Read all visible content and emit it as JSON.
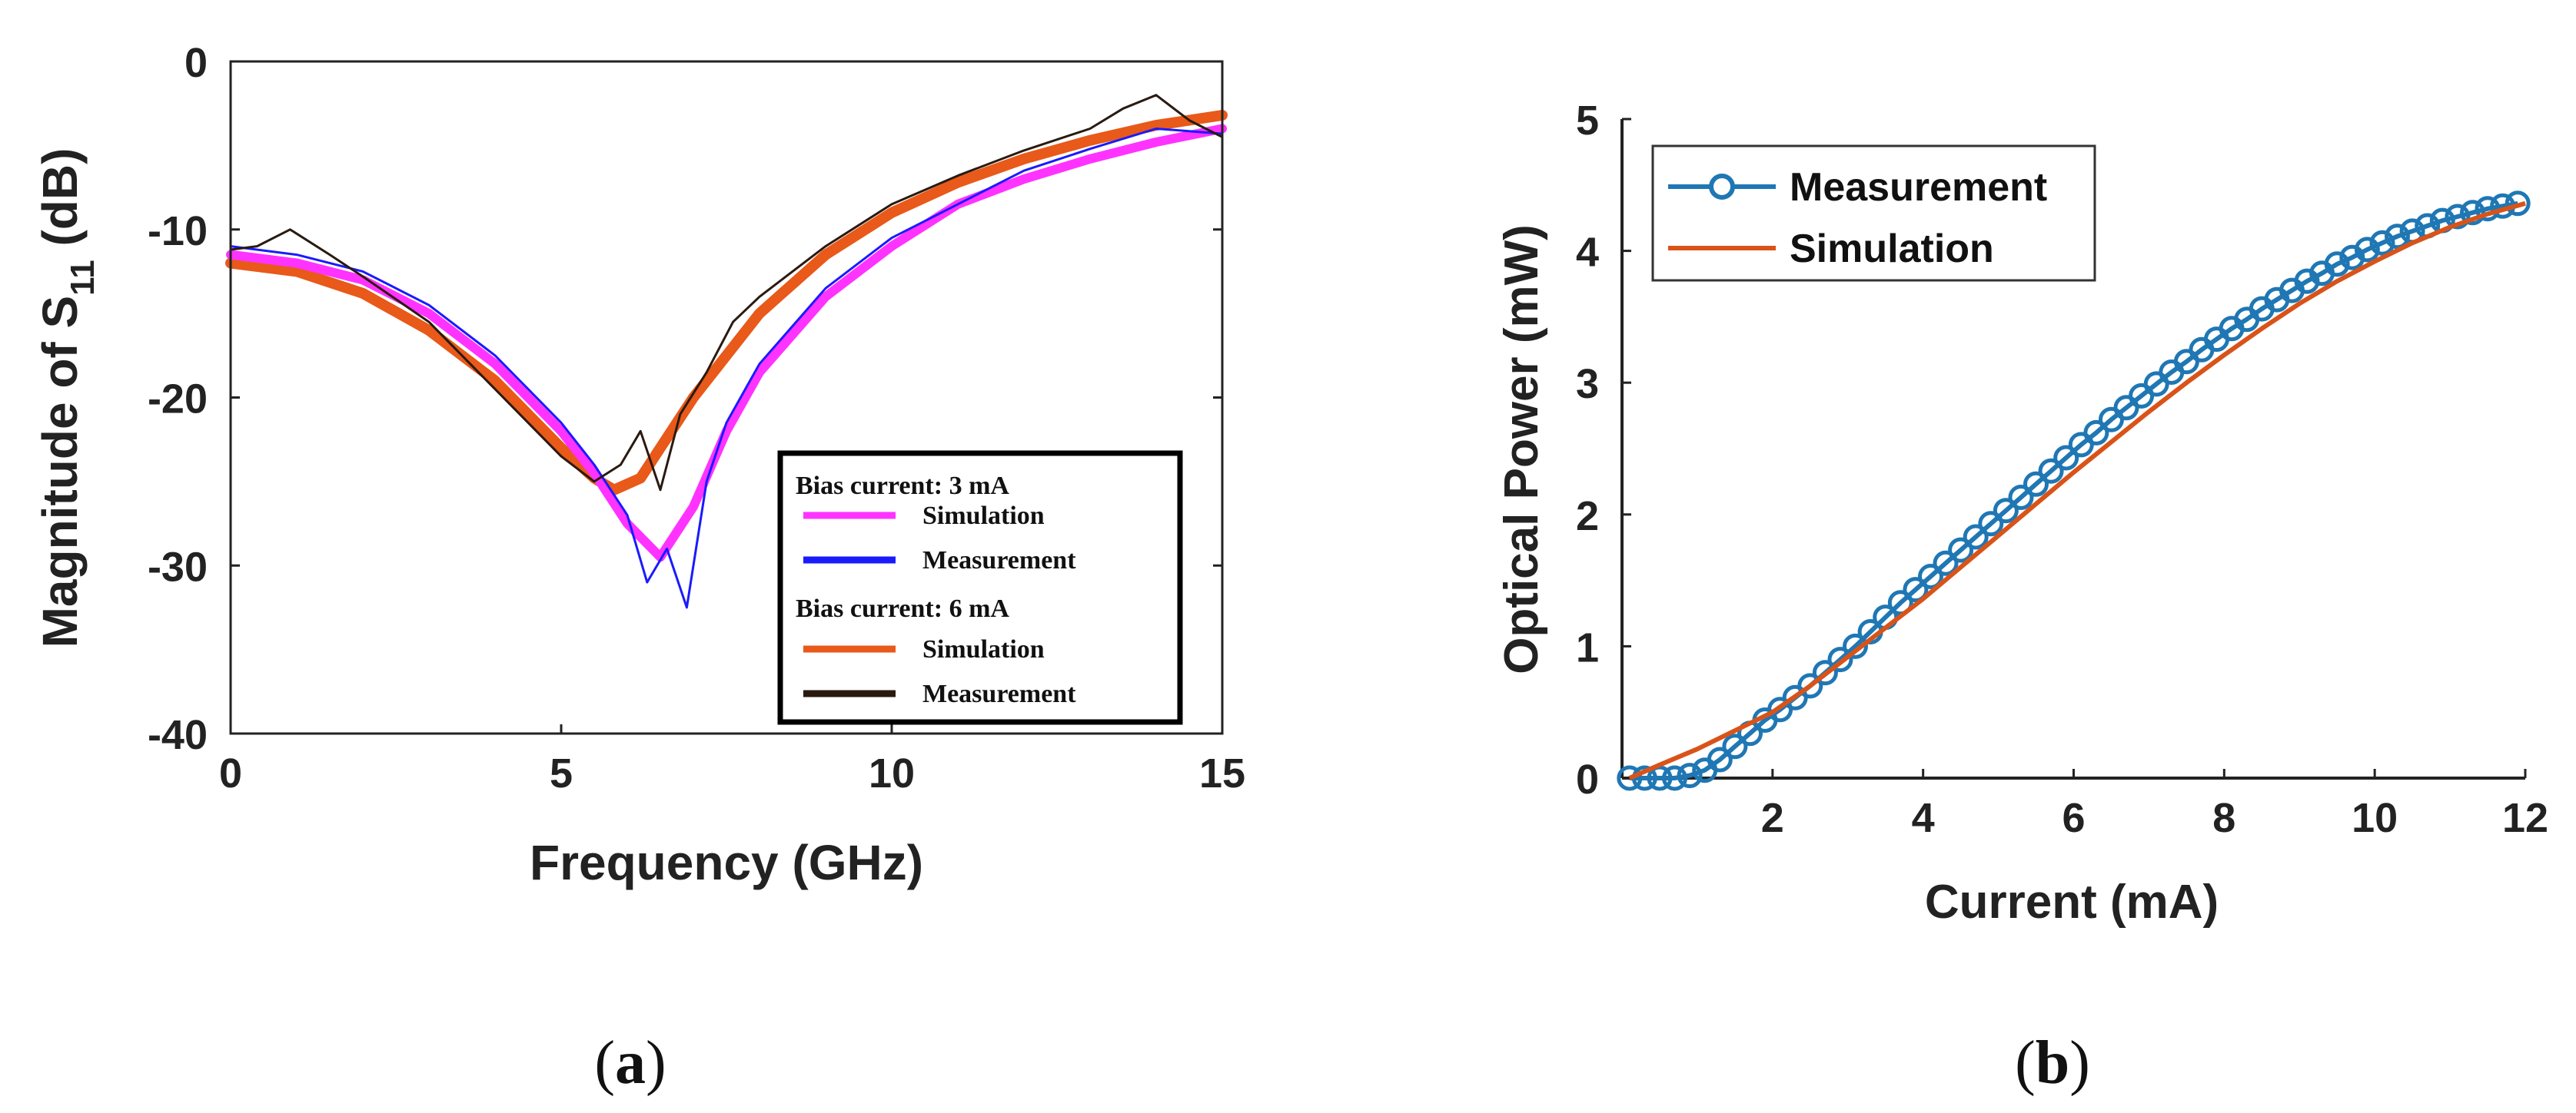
{
  "chart_data": [
    {
      "type": "line",
      "panel_label": "a",
      "xlabel": "Frequency (GHz)",
      "ylabel": "Magnitude of S",
      "ylabel_subscript": "11",
      "ylabel_suffix": " (dB)",
      "xlim": [
        0,
        15
      ],
      "ylim": [
        -40,
        0
      ],
      "xticks": [
        0,
        5,
        10,
        15
      ],
      "yticks": [
        0,
        -10,
        -20,
        -30,
        -40
      ],
      "xtick_labels": [
        "0",
        "5",
        "10",
        "15"
      ],
      "ytick_labels": [
        "0",
        "-10",
        "-20",
        "-30",
        "-40"
      ],
      "legend": {
        "group1_title": "Bias current: 3 mA",
        "group2_title": "Bias current: 6 mA",
        "placement": "bottom-right"
      },
      "series": [
        {
          "name": "Simulation",
          "group": "Bias current: 3 mA",
          "color": "#ff33ff",
          "x": [
            0,
            1,
            2,
            3,
            4,
            5,
            5.5,
            6,
            6.5,
            7,
            7.5,
            8,
            9,
            10,
            11,
            12,
            13,
            14,
            15
          ],
          "y": [
            -11.5,
            -12,
            -13,
            -15,
            -18,
            -22,
            -24.5,
            -27.5,
            -29.5,
            -26.5,
            -22,
            -18.5,
            -14,
            -11,
            -8.5,
            -7,
            -5.8,
            -4.8,
            -4
          ]
        },
        {
          "name": "Measurement",
          "group": "Bias current: 3 mA",
          "color": "#1a1aff",
          "x": [
            0,
            1,
            2,
            3,
            4,
            5,
            5.5,
            6,
            6.3,
            6.6,
            6.9,
            7.2,
            7.5,
            8,
            9,
            10,
            11,
            12,
            13,
            14,
            15
          ],
          "y": [
            -11,
            -11.5,
            -12.5,
            -14.5,
            -17.5,
            -21.5,
            -24,
            -27,
            -31,
            -29,
            -32.5,
            -25,
            -21.5,
            -18,
            -13.5,
            -10.5,
            -8.5,
            -6.5,
            -5.2,
            -4,
            -4.3
          ]
        },
        {
          "name": "Simulation",
          "group": "Bias current: 6 mA",
          "color": "#e8591a",
          "x": [
            0,
            1,
            2,
            3,
            4,
            5,
            5.5,
            5.8,
            6.2,
            6.5,
            7,
            7.5,
            8,
            9,
            10,
            11,
            12,
            13,
            14,
            15
          ],
          "y": [
            -12,
            -12.5,
            -13.8,
            -16,
            -19,
            -23,
            -24.8,
            -25.5,
            -24.8,
            -23,
            -20,
            -17.5,
            -15,
            -11.5,
            -9,
            -7.2,
            -5.8,
            -4.7,
            -3.8,
            -3.2
          ]
        },
        {
          "name": "Measurement",
          "group": "Bias current: 6 mA",
          "color": "#2a1a10",
          "x": [
            0,
            0.4,
            0.9,
            1.5,
            2,
            3,
            4,
            5,
            5.5,
            5.9,
            6.2,
            6.5,
            6.8,
            7.2,
            7.6,
            8,
            9,
            10,
            11,
            12,
            13,
            13.5,
            14,
            14.5,
            15
          ],
          "y": [
            -11.2,
            -11,
            -10,
            -11.5,
            -12.8,
            -15.5,
            -19.5,
            -23.5,
            -25,
            -24,
            -22,
            -25.5,
            -21,
            -18.5,
            -15.5,
            -14,
            -11,
            -8.5,
            -6.8,
            -5.3,
            -4,
            -2.8,
            -2,
            -3.5,
            -4.5
          ]
        }
      ]
    },
    {
      "type": "line",
      "panel_label": "b",
      "xlabel": "Current (mA)",
      "ylabel": "Optical Power (mW)",
      "xlim": [
        0,
        12
      ],
      "ylim": [
        0,
        5
      ],
      "xticks": [
        2,
        4,
        6,
        8,
        10,
        12
      ],
      "yticks": [
        0,
        1,
        2,
        3,
        4,
        5
      ],
      "xtick_labels": [
        "2",
        "4",
        "6",
        "8",
        "10",
        "12"
      ],
      "ytick_labels": [
        "0",
        "1",
        "2",
        "3",
        "4",
        "5"
      ],
      "legend": {
        "placement": "top-left"
      },
      "series": [
        {
          "name": "Measurement",
          "color": "#1f77b4",
          "marker": "circle",
          "x": [
            0.1,
            0.3,
            0.5,
            0.7,
            0.9,
            1.1,
            1.3,
            1.5,
            1.7,
            1.9,
            2.1,
            2.3,
            2.5,
            2.7,
            2.9,
            3.1,
            3.3,
            3.5,
            3.7,
            3.9,
            4.1,
            4.3,
            4.5,
            4.7,
            4.9,
            5.1,
            5.3,
            5.5,
            5.7,
            5.9,
            6.1,
            6.3,
            6.5,
            6.7,
            6.9,
            7.1,
            7.3,
            7.5,
            7.7,
            7.9,
            8.1,
            8.3,
            8.5,
            8.7,
            8.9,
            9.1,
            9.3,
            9.5,
            9.7,
            9.9,
            10.1,
            10.3,
            10.5,
            10.7,
            10.9,
            11.1,
            11.3,
            11.5,
            11.7,
            11.9
          ],
          "y": [
            0,
            0,
            0,
            0,
            0.02,
            0.06,
            0.14,
            0.24,
            0.34,
            0.44,
            0.52,
            0.61,
            0.7,
            0.8,
            0.9,
            1,
            1.11,
            1.22,
            1.33,
            1.43,
            1.53,
            1.63,
            1.73,
            1.83,
            1.93,
            2.03,
            2.13,
            2.23,
            2.33,
            2.43,
            2.53,
            2.62,
            2.72,
            2.81,
            2.9,
            2.99,
            3.08,
            3.16,
            3.25,
            3.33,
            3.41,
            3.48,
            3.56,
            3.63,
            3.7,
            3.77,
            3.83,
            3.9,
            3.95,
            4.01,
            4.06,
            4.11,
            4.15,
            4.19,
            4.23,
            4.26,
            4.29,
            4.32,
            4.34,
            4.36
          ]
        },
        {
          "name": "Simulation",
          "color": "#d95319",
          "x": [
            0.1,
            0.5,
            1,
            1.5,
            2,
            2.5,
            3,
            3.5,
            4,
            4.5,
            5,
            5.5,
            6,
            6.5,
            7,
            7.5,
            8,
            8.5,
            9,
            9.5,
            10,
            10.5,
            11,
            11.5,
            12
          ],
          "y": [
            0,
            0.1,
            0.22,
            0.36,
            0.5,
            0.7,
            0.92,
            1.14,
            1.36,
            1.6,
            1.84,
            2.08,
            2.32,
            2.55,
            2.78,
            3.0,
            3.21,
            3.41,
            3.6,
            3.77,
            3.92,
            4.06,
            4.18,
            4.28,
            4.36
          ]
        }
      ]
    }
  ]
}
